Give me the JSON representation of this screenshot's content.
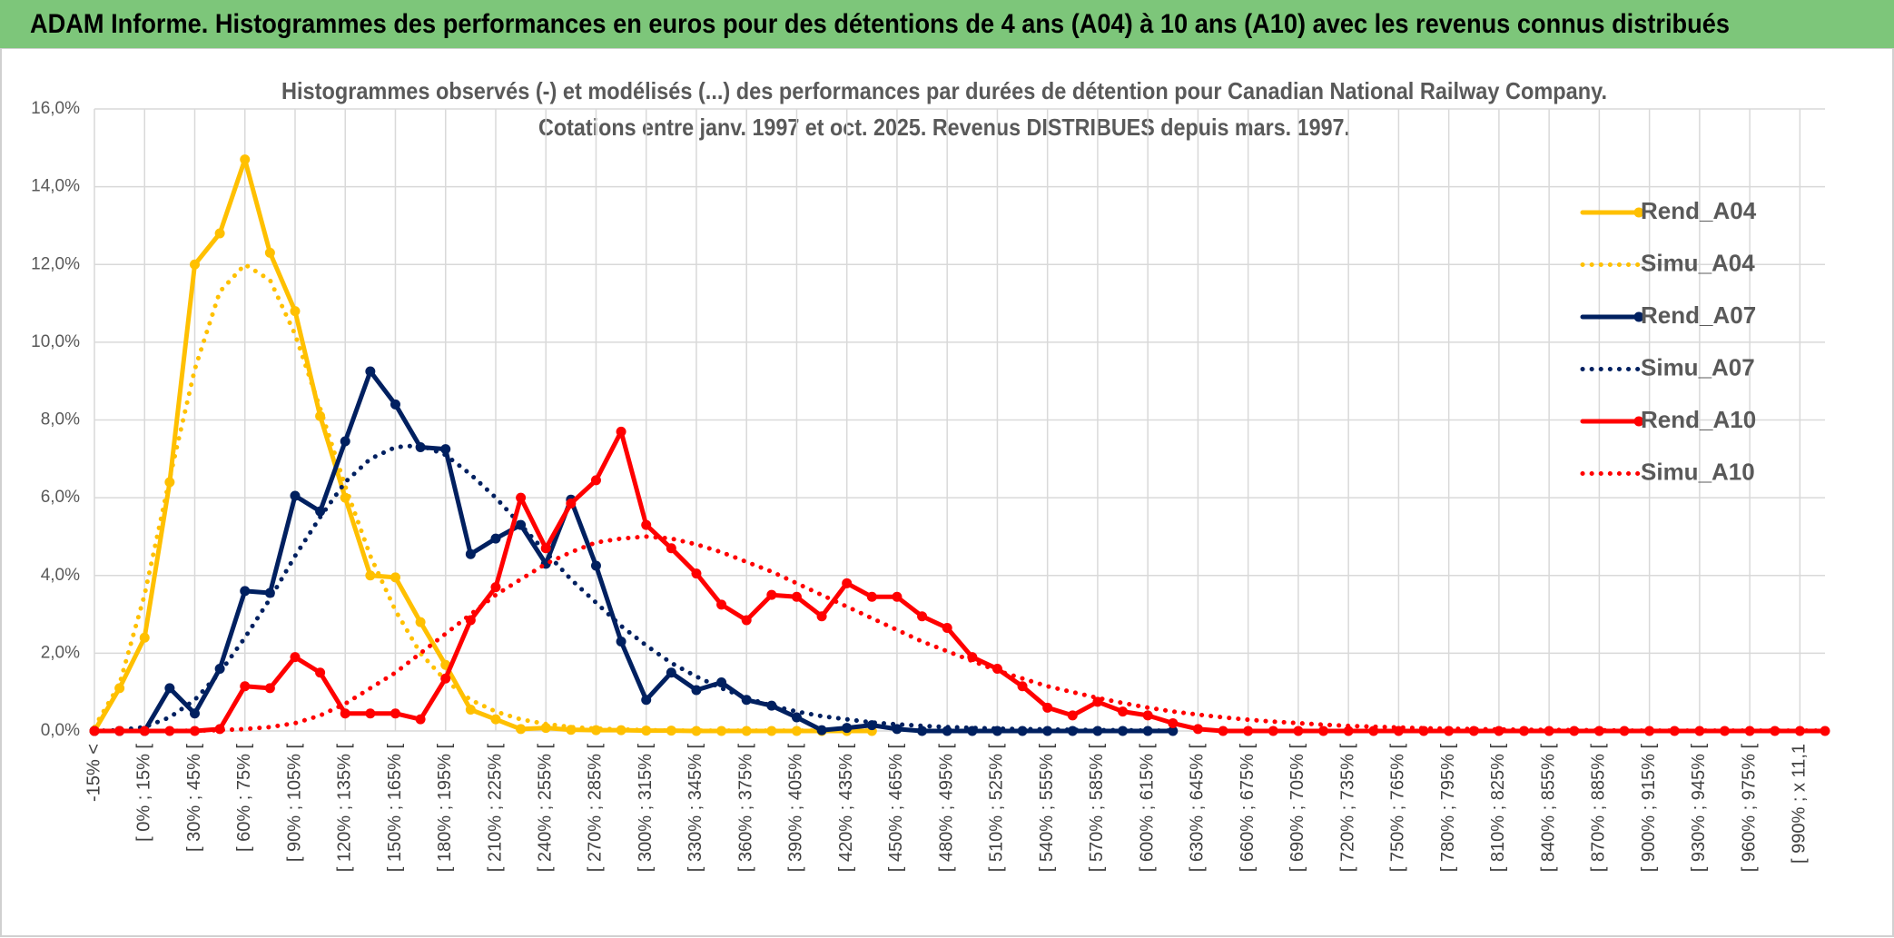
{
  "chart_data": {
    "type": "line",
    "title": "ADAM Informe. Histogrammes des performances en euros pour des détentions de 4 ans (A04) à 10 ans (A10) avec les revenus connus distribués",
    "subtitle": [
      "Histogrammes observés (-) et modélisés (...) des performances par durées de détention pour Canadian National Railway Company.",
      "Cotations entre janv. 1997 et oct. 2025. Revenus DISTRIBUES depuis mars. 1997."
    ],
    "categories": [
      "-15% <",
      null,
      "[ 0% ; 15% [",
      null,
      "[ 30% ; 45% [",
      null,
      "[ 60% ; 75% [",
      null,
      "[ 90% ; 105% [",
      null,
      "[ 120% ; 135% [",
      null,
      "[ 150% ; 165% [",
      null,
      "[ 180% ; 195% [",
      null,
      "[ 210% ; 225% [",
      null,
      "[ 240% ; 255% [",
      null,
      "[ 270% ; 285% [",
      null,
      "[ 300% ; 315% [",
      null,
      "[ 330% ; 345% [",
      null,
      "[ 360% ; 375% [",
      null,
      "[ 390% ; 405% [",
      null,
      "[ 420% ; 435% [",
      null,
      "[ 450% ; 465% [",
      null,
      "[ 480% ; 495% [",
      null,
      "[ 510% ; 525% [",
      null,
      "[ 540% ; 555% [",
      null,
      "[ 570% ; 585% [",
      null,
      "[ 600% ; 615% [",
      null,
      "[ 630% ; 645% [",
      null,
      "[ 660% ; 675% [",
      null,
      "[ 690% ; 705% [",
      null,
      "[ 720% ; 735% [",
      null,
      "[ 750% ; 765% [",
      null,
      "[ 780% ; 795% [",
      null,
      "[ 810% ; 825% [",
      null,
      "[ 840% ; 855% [",
      null,
      "[ 870% ; 885% [",
      null,
      "[ 900% ; 915% [",
      null,
      "[ 930% ; 945% [",
      null,
      "[ 960% ; 975% [",
      null,
      "[ 990% ; x 11,1",
      null
    ],
    "ylim": [
      0,
      16
    ],
    "yticks": [
      {
        "value": 0,
        "label": "0,0%"
      },
      {
        "value": 2,
        "label": "2,0%"
      },
      {
        "value": 4,
        "label": "4,0%"
      },
      {
        "value": 6,
        "label": "6,0%"
      },
      {
        "value": 8,
        "label": "8,0%"
      },
      {
        "value": 10,
        "label": "10,0%"
      },
      {
        "value": 12,
        "label": "12,0%"
      },
      {
        "value": 14,
        "label": "14,0%"
      },
      {
        "value": 16,
        "label": "16,0%"
      }
    ],
    "grid": true,
    "legend": "right",
    "series": [
      {
        "name": "Rend_A04",
        "color": "#FFC000",
        "style": "solid",
        "values": [
          0,
          1.1,
          2.4,
          6.4,
          12.0,
          12.8,
          14.7,
          12.3,
          10.8,
          8.1,
          6.0,
          4.0,
          3.95,
          2.8,
          1.7,
          0.55,
          0.3,
          0.05,
          0.08,
          0.03,
          0.02,
          0.02,
          0.01,
          0.01,
          0,
          0,
          0,
          0,
          0,
          0,
          0,
          0,
          null,
          null,
          null,
          null,
          null,
          null,
          null,
          null,
          null,
          null,
          null,
          null,
          null,
          null,
          null,
          null,
          null,
          null,
          null,
          null,
          null,
          null,
          null,
          null,
          null,
          null,
          null,
          null,
          null,
          null,
          null,
          null,
          null,
          null,
          null,
          null,
          null,
          null
        ]
      },
      {
        "name": "Simu_A04",
        "color": "#FFC000",
        "style": "dotted",
        "values": [
          0.1,
          1.2,
          3.5,
          6.5,
          9.3,
          11.3,
          12.0,
          11.6,
          10.2,
          8.3,
          6.3,
          4.5,
          3.1,
          2.0,
          1.3,
          0.8,
          0.5,
          0.3,
          0.18,
          0.1,
          0.06,
          0.04,
          0.02,
          0.01,
          0.01,
          0.01,
          0.01,
          0.01,
          0.01,
          0.01,
          0.01,
          0.01,
          null,
          null,
          null,
          null,
          null,
          null,
          null,
          null,
          null,
          null,
          null,
          null,
          null,
          null,
          null,
          null,
          null,
          null,
          null,
          null,
          null,
          null,
          null,
          null,
          null,
          null,
          null,
          null,
          null,
          null,
          null,
          null,
          null,
          null,
          null,
          null,
          null,
          null
        ]
      },
      {
        "name": "Rend_A07",
        "color": "#002060",
        "style": "solid",
        "values": [
          0,
          0,
          0,
          1.1,
          0.45,
          1.6,
          3.6,
          3.55,
          6.05,
          5.65,
          7.45,
          9.25,
          8.4,
          7.3,
          7.25,
          4.55,
          4.95,
          5.3,
          4.3,
          5.95,
          4.25,
          2.3,
          0.8,
          1.5,
          1.05,
          1.25,
          0.8,
          0.65,
          0.35,
          0.02,
          0.08,
          0.15,
          0.05,
          0,
          0,
          0,
          0,
          0,
          0,
          0,
          0,
          0,
          0,
          0,
          null,
          null,
          null,
          null,
          null,
          null,
          null,
          null,
          null,
          null,
          null,
          null,
          null,
          null,
          null,
          null,
          null,
          null,
          null,
          null,
          null,
          null,
          null,
          null,
          null,
          null
        ]
      },
      {
        "name": "Simu_A07",
        "color": "#002060",
        "style": "dotted",
        "values": [
          0,
          0.02,
          0.1,
          0.35,
          0.8,
          1.5,
          2.4,
          3.4,
          4.5,
          5.5,
          6.4,
          7.0,
          7.3,
          7.35,
          7.1,
          6.6,
          6.0,
          5.3,
          4.6,
          3.9,
          3.3,
          2.7,
          2.2,
          1.75,
          1.4,
          1.1,
          0.85,
          0.65,
          0.5,
          0.38,
          0.3,
          0.22,
          0.17,
          0.13,
          0.1,
          0.08,
          0.06,
          0.05,
          0.04,
          0.03,
          0.02,
          0.02,
          0.01,
          0.01,
          null,
          null,
          null,
          null,
          null,
          null,
          null,
          null,
          null,
          null,
          null,
          null,
          null,
          null,
          null,
          null,
          null,
          null,
          null,
          null,
          null,
          null,
          null,
          null,
          null,
          null
        ]
      },
      {
        "name": "Rend_A10",
        "color": "#FF0000",
        "style": "solid",
        "values": [
          0,
          0,
          0,
          0,
          0,
          0.05,
          1.15,
          1.1,
          1.9,
          1.5,
          0.45,
          0.45,
          0.45,
          0.3,
          1.35,
          2.85,
          3.7,
          6.0,
          4.7,
          5.85,
          6.45,
          7.7,
          5.3,
          4.7,
          4.05,
          3.25,
          2.85,
          3.5,
          3.45,
          2.95,
          3.8,
          3.45,
          3.45,
          2.95,
          2.65,
          1.9,
          1.6,
          1.15,
          0.6,
          0.4,
          0.75,
          0.5,
          0.4,
          0.2,
          0.05,
          0,
          0,
          0,
          0,
          0,
          0,
          0,
          0,
          0,
          0,
          0,
          0,
          0,
          0,
          0,
          0,
          0,
          0,
          0,
          0,
          0,
          0,
          0,
          0,
          0
        ]
      },
      {
        "name": "Simu_A10",
        "color": "#FF0000",
        "style": "dotted",
        "values": [
          0,
          0,
          0,
          0,
          0.01,
          0.02,
          0.05,
          0.1,
          0.2,
          0.4,
          0.7,
          1.1,
          1.5,
          2.0,
          2.5,
          3.0,
          3.5,
          3.9,
          4.3,
          4.6,
          4.85,
          4.95,
          5.0,
          4.95,
          4.8,
          4.6,
          4.35,
          4.1,
          3.8,
          3.5,
          3.2,
          2.9,
          2.6,
          2.3,
          2.05,
          1.8,
          1.55,
          1.35,
          1.15,
          1.0,
          0.85,
          0.72,
          0.6,
          0.5,
          0.42,
          0.35,
          0.29,
          0.24,
          0.2,
          0.16,
          0.13,
          0.11,
          0.09,
          0.07,
          0.06,
          0.05,
          0.04,
          0.03,
          0.03,
          0.02,
          0.02,
          0.01,
          0.01,
          0.01,
          0.01,
          0.01,
          0.01,
          0.01,
          0.01,
          0.01
        ]
      }
    ]
  }
}
